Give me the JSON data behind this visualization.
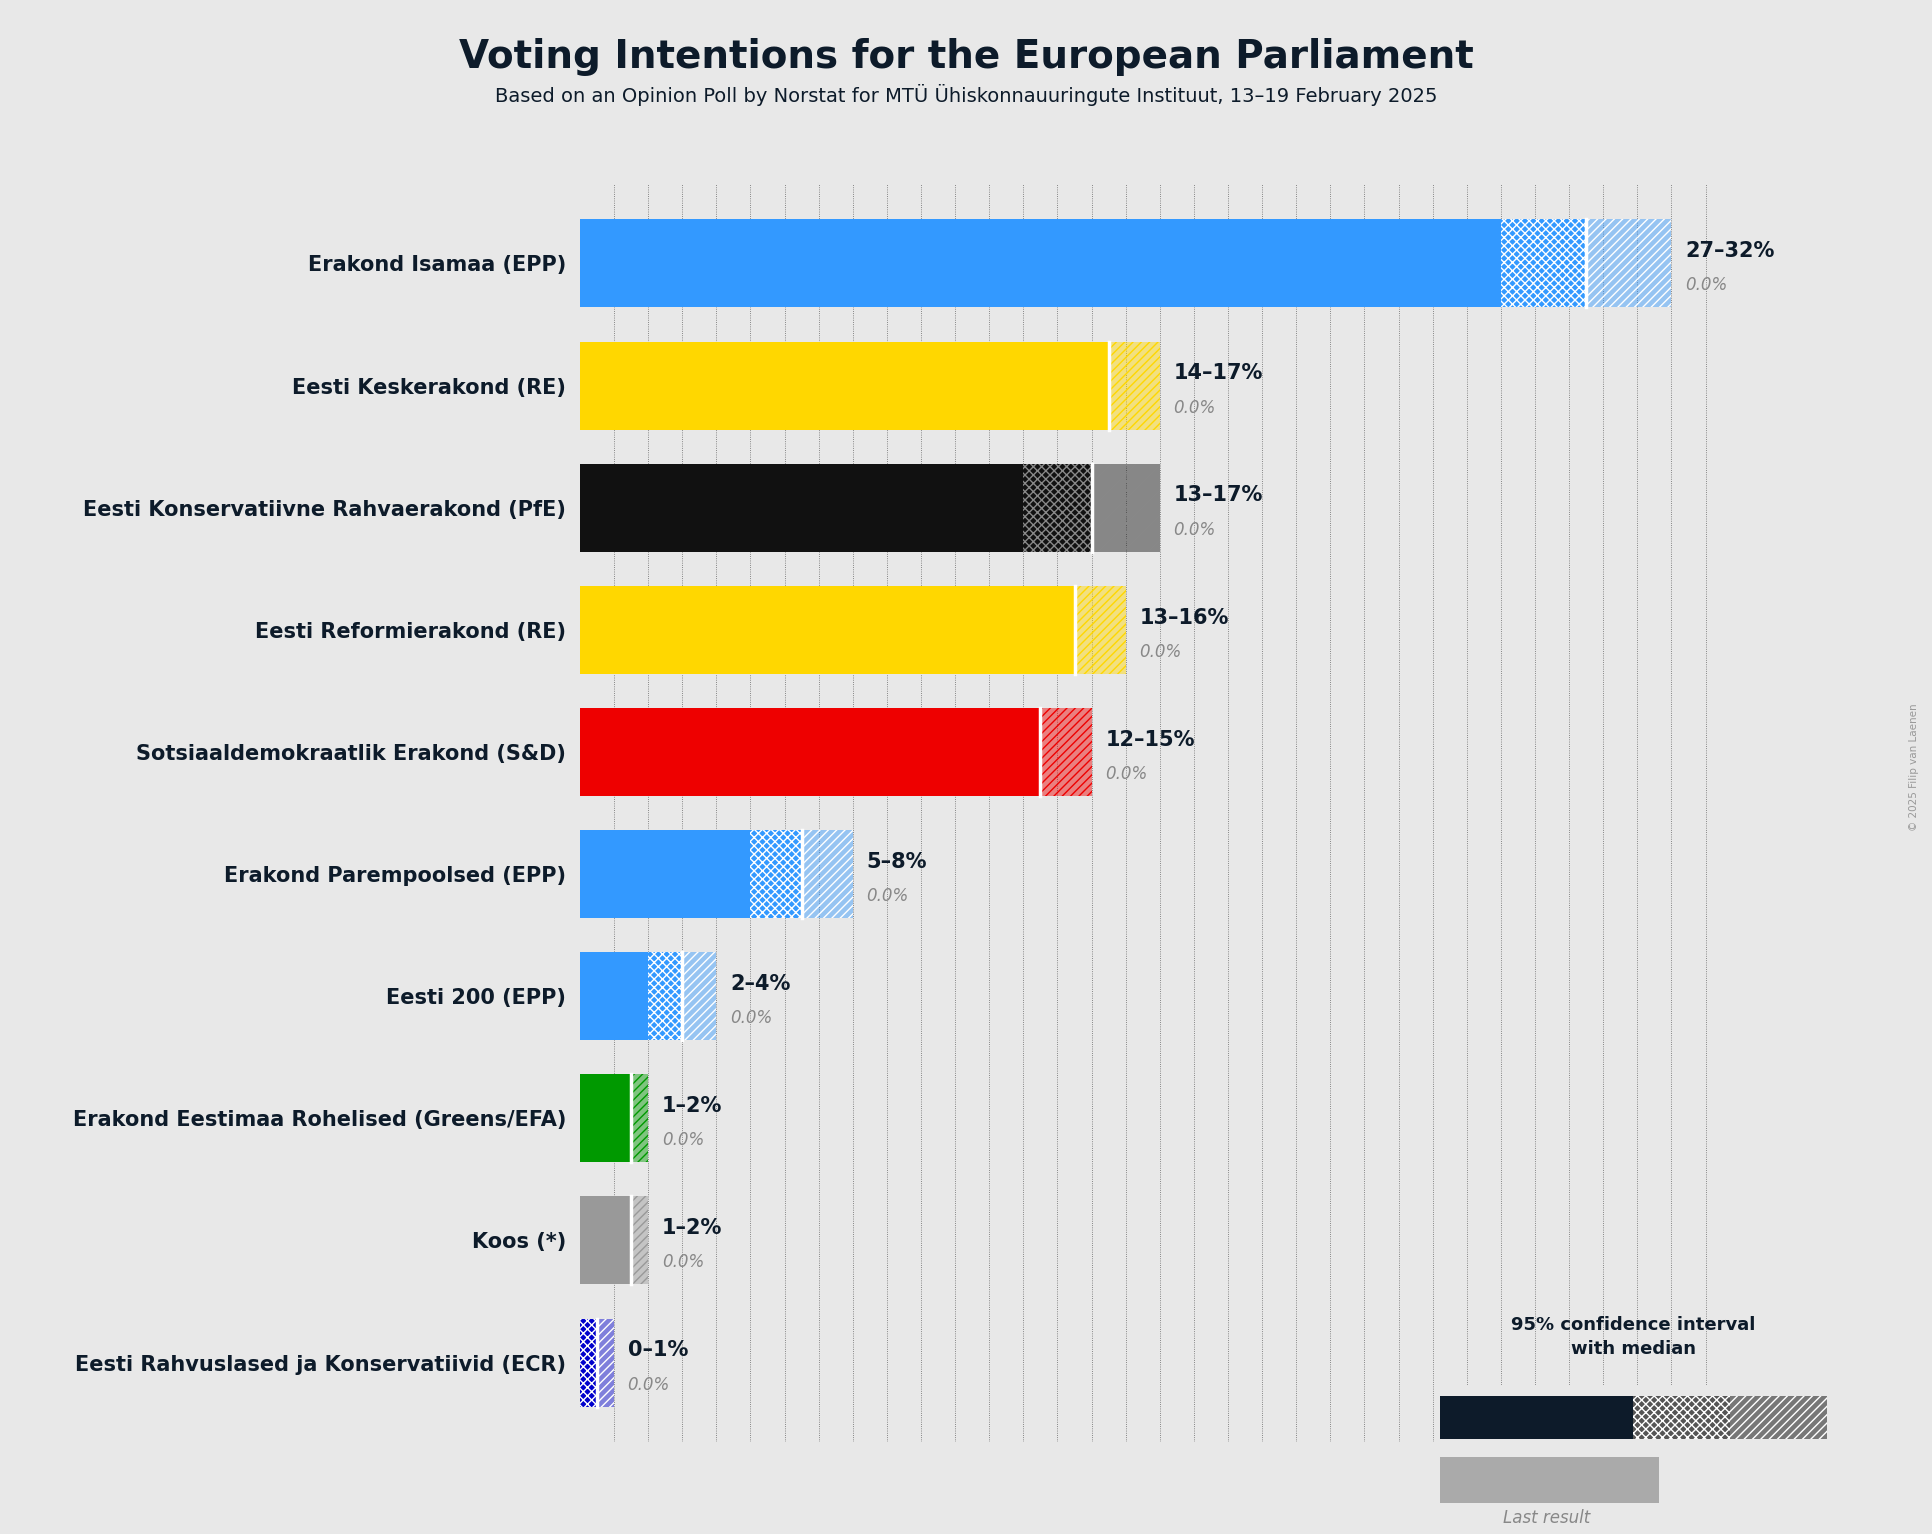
{
  "title": "Voting Intentions for the European Parliament",
  "subtitle": "Based on an Opinion Poll by Norstat for MTÜ Ühiskonnauuringute Instituut, 13–19 February 2025",
  "copyright": "© 2025 Filip van Laenen",
  "background_color": "#e8e8e8",
  "parties": [
    {
      "name": "Erakond Isamaa (EPP)",
      "low": 27,
      "high": 32,
      "median": 29.5,
      "color": "#3399FF",
      "ci_hatch_color": "white",
      "label": "27–32%"
    },
    {
      "name": "Eesti Keskerakond (RE)",
      "low": 14,
      "high": 17,
      "median": 15.5,
      "color": "#FFD700",
      "ci_hatch_color": "#FFD700",
      "label": "14–17%"
    },
    {
      "name": "Eesti Konservatiivne Rahvaerakond (PfE)",
      "low": 13,
      "high": 17,
      "median": 15.0,
      "color": "#111111",
      "ci_hatch_color": "#888888",
      "label": "13–17%"
    },
    {
      "name": "Eesti Reformierakond (RE)",
      "low": 13,
      "high": 16,
      "median": 14.5,
      "color": "#FFD700",
      "ci_hatch_color": "#FFD700",
      "label": "13–16%"
    },
    {
      "name": "Sotsiaaldemokraatlik Erakond (S&D)",
      "low": 12,
      "high": 15,
      "median": 13.5,
      "color": "#EE0000",
      "ci_hatch_color": "#EE0000",
      "label": "12–15%"
    },
    {
      "name": "Erakond Parempoolsed (EPP)",
      "low": 5,
      "high": 8,
      "median": 6.5,
      "color": "#3399FF",
      "ci_hatch_color": "white",
      "label": "5–8%"
    },
    {
      "name": "Eesti 200 (EPP)",
      "low": 2,
      "high": 4,
      "median": 3.0,
      "color": "#3399FF",
      "ci_hatch_color": "white",
      "label": "2–4%"
    },
    {
      "name": "Erakond Eestimaa Rohelised (Greens/EFA)",
      "low": 1,
      "high": 2,
      "median": 1.5,
      "color": "#009900",
      "ci_hatch_color": "#009900",
      "label": "1–2%"
    },
    {
      "name": "Koos (*)",
      "low": 1,
      "high": 2,
      "median": 1.5,
      "color": "#999999",
      "ci_hatch_color": "#999999",
      "label": "1–2%"
    },
    {
      "name": "Eesti Rahvuslased ja Konservatiivid (ECR)",
      "low": 0,
      "high": 1,
      "median": 0.5,
      "color": "#0000CC",
      "ci_hatch_color": "white",
      "label": "0–1%"
    }
  ],
  "xlim": [
    0,
    34
  ],
  "bar_height": 0.72,
  "figsize": [
    19.33,
    15.34
  ],
  "dpi": 100,
  "label_fontsize": 15,
  "sublabel_fontsize": 12,
  "ytick_fontsize": 15,
  "title_fontsize": 28,
  "subtitle_fontsize": 14
}
